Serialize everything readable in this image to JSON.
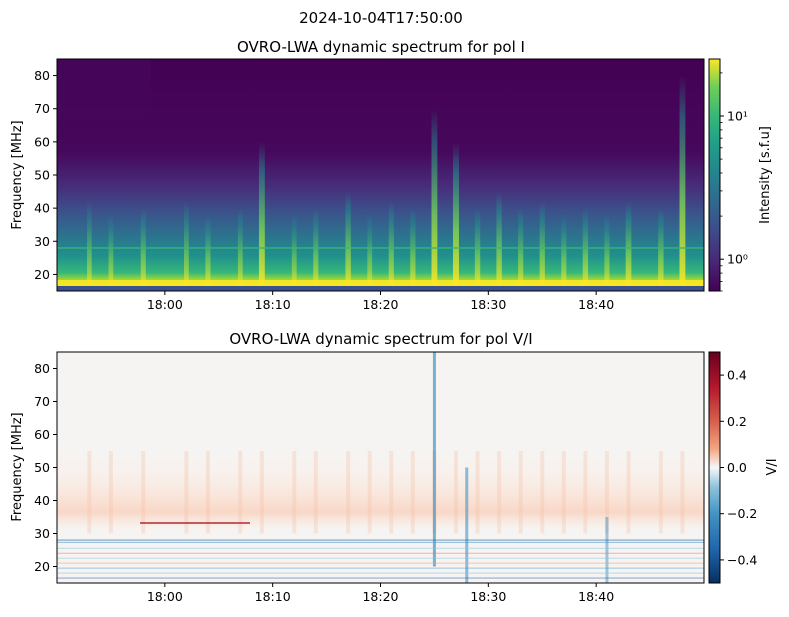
{
  "figure": {
    "suptitle": "2024-10-04T17:50:00"
  },
  "chart_data": [
    {
      "type": "heatmap",
      "title": "OVRO-LWA dynamic spectrum for pol I",
      "ylabel": "Frequency [MHz]",
      "xlabel": "",
      "xlim": [
        "17:50",
        "18:50"
      ],
      "ylim": [
        15,
        85
      ],
      "xticks": [
        "18:00",
        "18:10",
        "18:20",
        "18:30",
        "18:40"
      ],
      "yticks": [
        20,
        30,
        40,
        50,
        60,
        70,
        80
      ],
      "colormap": "viridis",
      "colorbar": {
        "label": "Intensity [s.f.u]",
        "scale": "log",
        "range": [
          0.6,
          25
        ],
        "ticks": [
          {
            "value": 1,
            "label": "10⁰"
          },
          {
            "value": 10,
            "label": "10¹"
          }
        ]
      },
      "bursts": [
        {
          "t": "17:53",
          "f_top": 42,
          "s": 0.55
        },
        {
          "t": "17:55",
          "f_top": 38,
          "s": 0.6
        },
        {
          "t": "17:58",
          "f_top": 40,
          "s": 0.7
        },
        {
          "t": "18:02",
          "f_top": 42,
          "s": 0.6
        },
        {
          "t": "18:04",
          "f_top": 38,
          "s": 0.7
        },
        {
          "t": "18:07",
          "f_top": 40,
          "s": 0.6
        },
        {
          "t": "18:09",
          "f_top": 60,
          "s": 0.95
        },
        {
          "t": "18:12",
          "f_top": 38,
          "s": 0.6
        },
        {
          "t": "18:14",
          "f_top": 40,
          "s": 0.7
        },
        {
          "t": "18:17",
          "f_top": 45,
          "s": 0.8
        },
        {
          "t": "18:19",
          "f_top": 38,
          "s": 0.6
        },
        {
          "t": "18:21",
          "f_top": 42,
          "s": 0.7
        },
        {
          "t": "18:23",
          "f_top": 40,
          "s": 0.75
        },
        {
          "t": "18:25",
          "f_top": 70,
          "s": 0.95
        },
        {
          "t": "18:27",
          "f_top": 60,
          "s": 1.0
        },
        {
          "t": "18:29",
          "f_top": 40,
          "s": 0.8
        },
        {
          "t": "18:31",
          "f_top": 45,
          "s": 0.8
        },
        {
          "t": "18:33",
          "f_top": 40,
          "s": 0.7
        },
        {
          "t": "18:35",
          "f_top": 42,
          "s": 0.75
        },
        {
          "t": "18:37",
          "f_top": 38,
          "s": 0.7
        },
        {
          "t": "18:39",
          "f_top": 40,
          "s": 0.8
        },
        {
          "t": "18:41",
          "f_top": 38,
          "s": 0.7
        },
        {
          "t": "18:43",
          "f_top": 42,
          "s": 0.9
        },
        {
          "t": "18:46",
          "f_top": 40,
          "s": 0.8
        },
        {
          "t": "18:48",
          "f_top": 80,
          "s": 0.95
        }
      ]
    },
    {
      "type": "heatmap",
      "title": "OVRO-LWA dynamic spectrum for pol V/I",
      "ylabel": "Frequency [MHz]",
      "xlabel": "",
      "xlim": [
        "17:50",
        "18:50"
      ],
      "ylim": [
        15,
        85
      ],
      "xticks": [
        "18:00",
        "18:10",
        "18:20",
        "18:30",
        "18:40"
      ],
      "yticks": [
        20,
        30,
        40,
        50,
        60,
        70,
        80
      ],
      "colormap": "RdBu_r",
      "colorbar": {
        "label": "V/I",
        "scale": "linear",
        "range": [
          -0.5,
          0.5
        ],
        "ticks": [
          {
            "value": 0.4,
            "label": "0.4"
          },
          {
            "value": 0.2,
            "label": "0.2"
          },
          {
            "value": 0.0,
            "label": "0.0"
          },
          {
            "value": -0.2,
            "label": "−0.2"
          },
          {
            "value": -0.4,
            "label": "−0.4"
          }
        ]
      },
      "features": [
        {
          "t": "18:25",
          "f_range": [
            20,
            85
          ],
          "v": -0.35
        },
        {
          "t": "18:28",
          "f_range": [
            15,
            50
          ],
          "v": -0.3
        },
        {
          "t": "18:41",
          "f_range": [
            15,
            35
          ],
          "v": -0.25
        }
      ]
    }
  ]
}
